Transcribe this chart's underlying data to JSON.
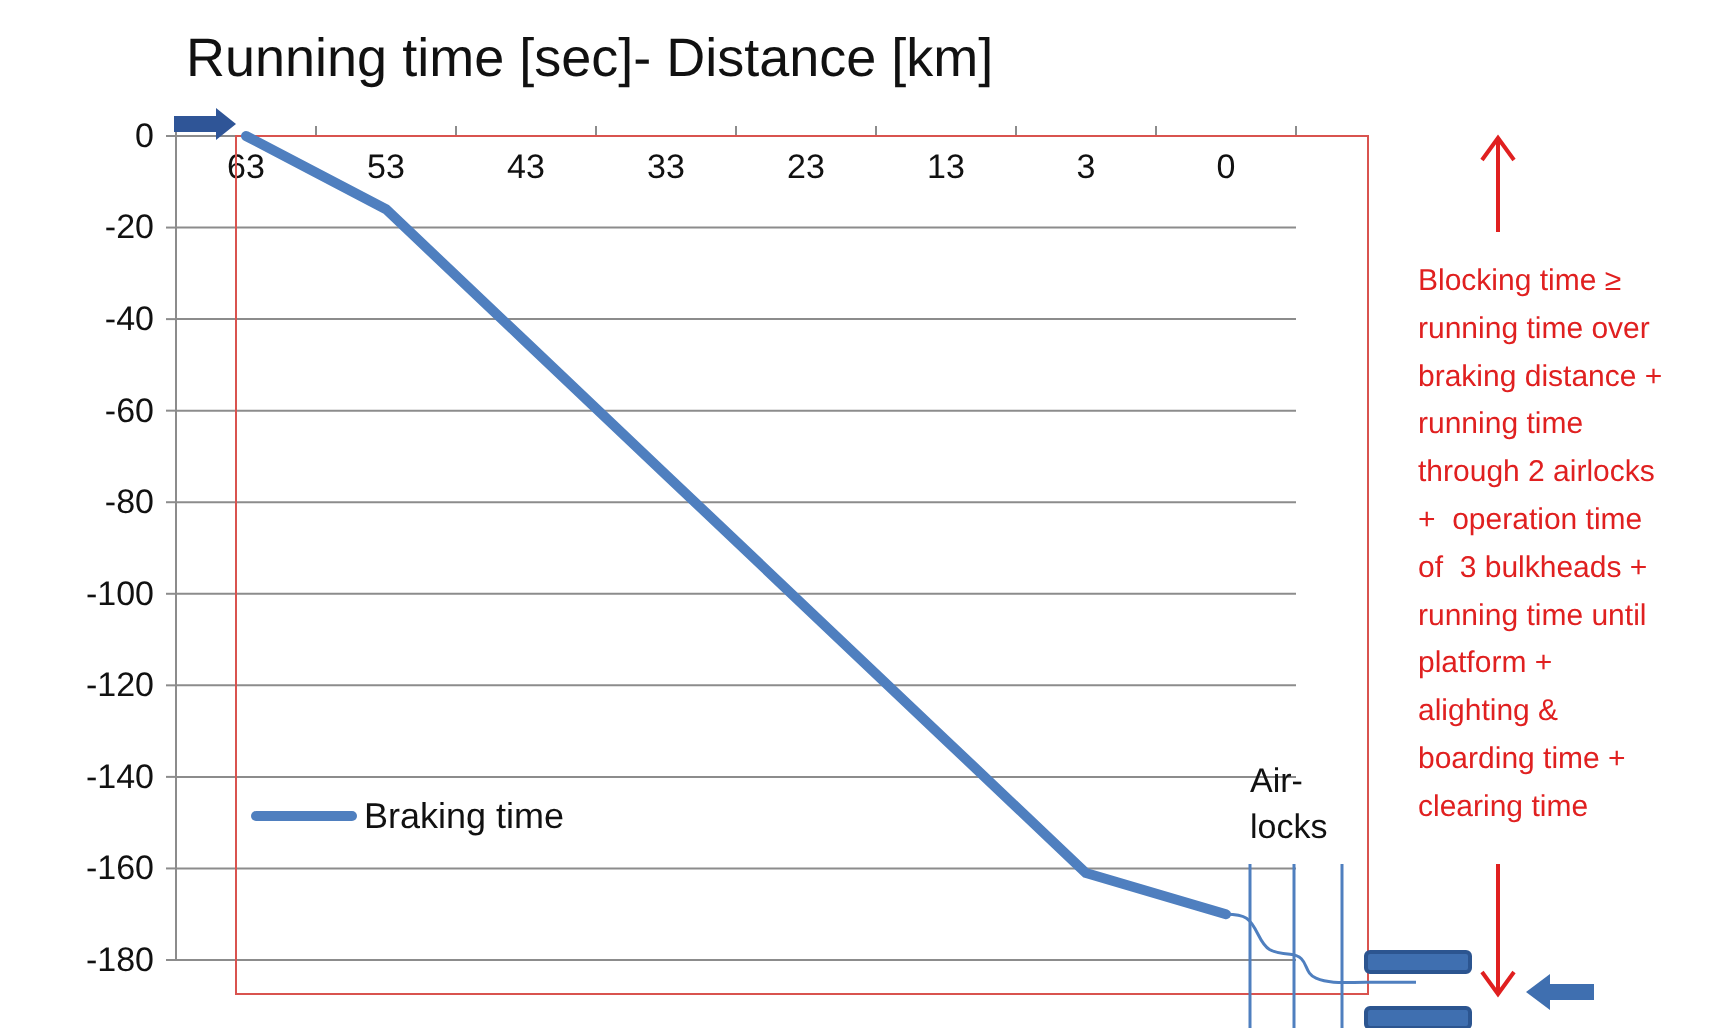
{
  "chart_data": {
    "type": "line",
    "title": "Running time [sec]- Distance [km]",
    "categories": [
      "63",
      "53",
      "43",
      "33",
      "23",
      "13",
      "3",
      "0"
    ],
    "series": [
      {
        "name": "Braking time",
        "color": "#4f7fbf",
        "values": [
          0,
          -16,
          -45,
          -74,
          -103,
          -132,
          -161,
          -170
        ]
      }
    ],
    "ylim": [
      -180,
      0
    ],
    "yticks": [
      0,
      -20,
      -40,
      -60,
      -80,
      -100,
      -120,
      -140,
      -160,
      -180
    ],
    "grid": "y",
    "legend": "bottom left",
    "annotations": [
      "Air-\nlocks",
      "Blocking time ≥\nrunning time over\nbraking distance +\nrunning time\nthrough 2 airlocks\n+  operation time\nof  3 bulkheads +\nrunning time until\nplatform +\nalighting &\nboarding time +\nclearing time"
    ]
  }
}
